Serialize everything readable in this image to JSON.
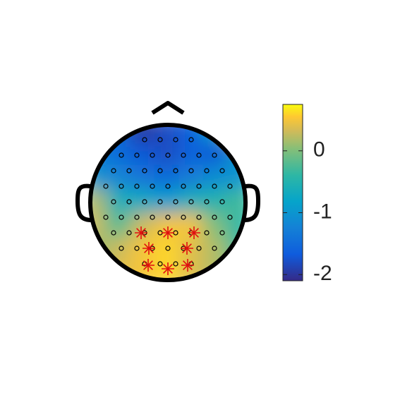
{
  "chart_data": {
    "type": "topoplot",
    "field": [
      [
        -1.2,
        -1.5,
        -2.0,
        -1.8,
        -1.6,
        -0.8,
        0.3
      ],
      [
        -1.3,
        -1.5,
        -1.7,
        -1.8,
        -1.6,
        -1.7,
        -1.0
      ],
      [
        -1.0,
        -1.2,
        -1.4,
        -1.5,
        -1.3,
        -1.1,
        -1.0
      ],
      [
        0.2,
        -0.6,
        -0.7,
        -0.9,
        -0.6,
        -0.5,
        -0.3
      ],
      [
        0.3,
        -0.2,
        0.3,
        0.5,
        0.5,
        0.0,
        -0.4
      ],
      [
        0.1,
        0.3,
        0.5,
        0.6,
        0.4,
        0.2,
        -0.3
      ],
      [
        0.2,
        0.4,
        0.5,
        0.6,
        0.4,
        0.2,
        0.0
      ]
    ],
    "clim": [
      -2.1,
      0.75
    ],
    "cticks": [
      0,
      -1,
      -2
    ]
  }
}
